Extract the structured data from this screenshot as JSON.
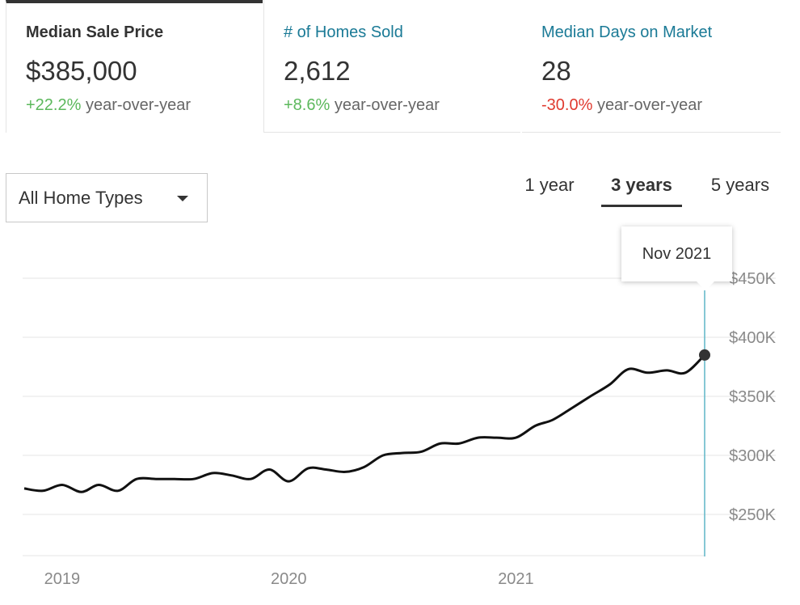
{
  "metrics": [
    {
      "title": "Median Sale Price",
      "value": "$385,000",
      "change": "+22.2%",
      "change_suffix": "year-over-year",
      "direction": "up"
    },
    {
      "title": "# of Homes Sold",
      "value": "2,612",
      "change": "+8.6%",
      "change_suffix": "year-over-year",
      "direction": "up"
    },
    {
      "title": "Median Days on Market",
      "value": "28",
      "change": "-30.0%",
      "change_suffix": "year-over-year",
      "direction": "down"
    }
  ],
  "filters": {
    "home_type": "All Home Types"
  },
  "range_tabs": [
    {
      "label": "1 year",
      "active": false
    },
    {
      "label": "3 years",
      "active": true
    },
    {
      "label": "5 years",
      "active": false
    }
  ],
  "tooltip": {
    "label": "Nov 2021"
  },
  "colors": {
    "line": "#111111",
    "grid": "#e6e6e6",
    "cursor": "#5fb6c7",
    "positive": "#5cb85c",
    "negative": "#e03a2f",
    "link": "#1a7a96"
  },
  "chart_data": {
    "type": "line",
    "series": [
      {
        "values": [
          [
            "2018-11-01",
            272000
          ],
          [
            "2018-12-01",
            270000
          ],
          [
            "2019-01-01",
            275000
          ],
          [
            "2019-02-01",
            269000
          ],
          [
            "2019-03-01",
            275000
          ],
          [
            "2019-04-01",
            270000
          ],
          [
            "2019-05-01",
            280000
          ],
          [
            "2019-06-01",
            280000
          ],
          [
            "2019-07-01",
            280000
          ],
          [
            "2019-08-01",
            280000
          ],
          [
            "2019-09-01",
            285000
          ],
          [
            "2019-10-01",
            283000
          ],
          [
            "2019-11-01",
            280000
          ],
          [
            "2019-12-01",
            288000
          ],
          [
            "2020-01-01",
            278000
          ],
          [
            "2020-02-01",
            289000
          ],
          [
            "2020-03-01",
            288000
          ],
          [
            "2020-04-01",
            286000
          ],
          [
            "2020-05-01",
            290000
          ],
          [
            "2020-06-01",
            300000
          ],
          [
            "2020-07-01",
            302000
          ],
          [
            "2020-08-01",
            303000
          ],
          [
            "2020-09-01",
            310000
          ],
          [
            "2020-10-01",
            310000
          ],
          [
            "2020-11-01",
            315000
          ],
          [
            "2020-12-01",
            315000
          ],
          [
            "2021-01-01",
            315000
          ],
          [
            "2021-02-01",
            325000
          ],
          [
            "2021-03-01",
            330000
          ],
          [
            "2021-04-01",
            340000
          ],
          [
            "2021-05-01",
            350000
          ],
          [
            "2021-06-01",
            360000
          ],
          [
            "2021-07-01",
            373000
          ],
          [
            "2021-08-01",
            370000
          ],
          [
            "2021-09-01",
            372000
          ],
          [
            "2021-10-01",
            370000
          ],
          [
            "2021-11-01",
            385000
          ]
        ]
      }
    ],
    "x_ticks": [
      "2019",
      "2020",
      "2021"
    ],
    "y_ticks": [
      "$250K",
      "$300K",
      "$350K",
      "$400K",
      "$450K"
    ],
    "y_tick_values": [
      250000,
      300000,
      350000,
      400000,
      450000
    ],
    "ylim": [
      215000,
      450000
    ],
    "xlim": [
      "2018-11-01",
      "2021-11-01"
    ],
    "grid": true,
    "highlight": {
      "x": "2021-11-01",
      "y": 385000
    }
  }
}
